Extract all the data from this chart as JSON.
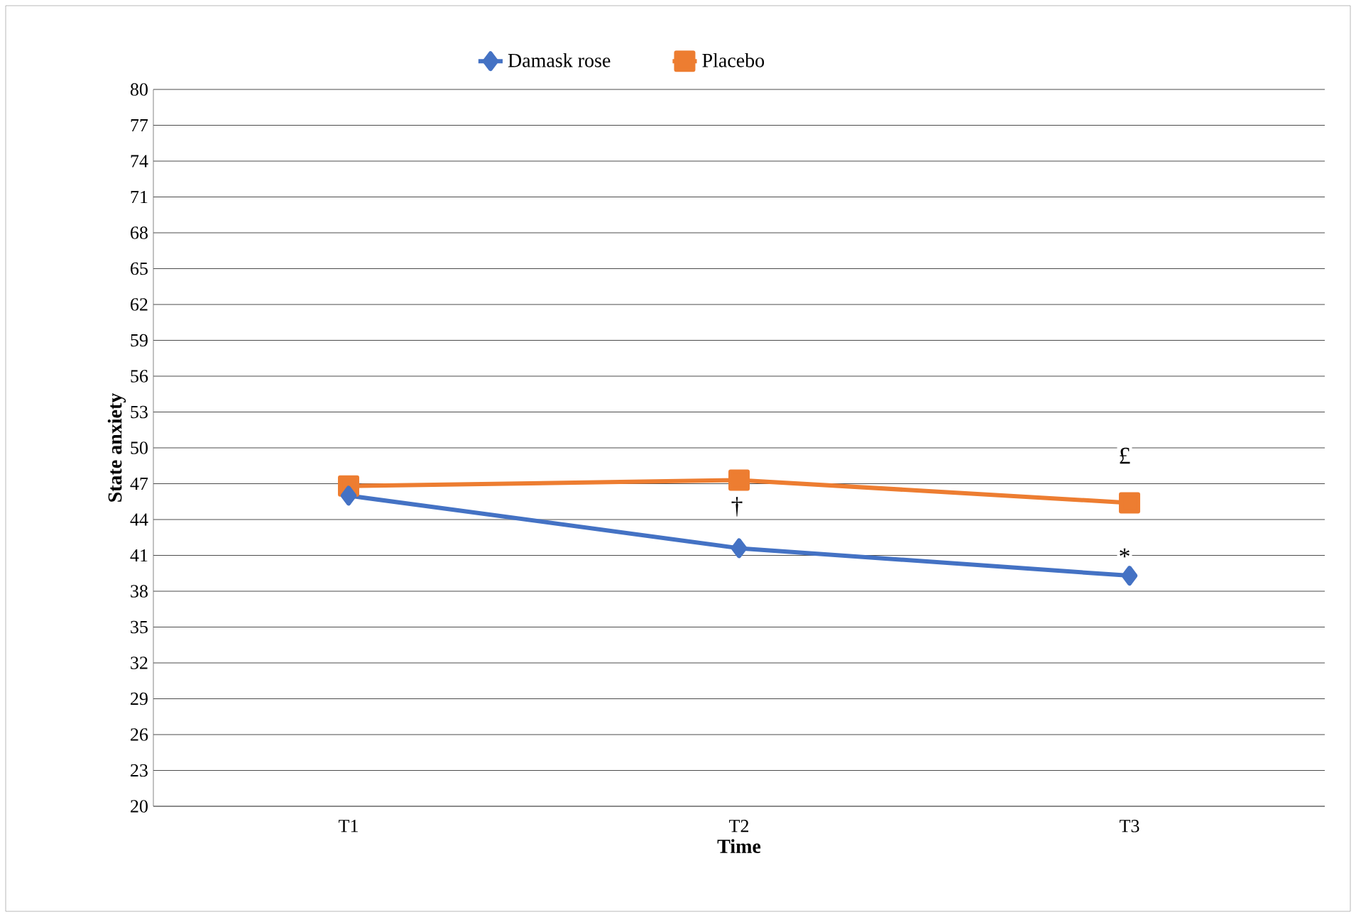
{
  "chart_data": {
    "type": "line",
    "xlabel": "Time",
    "ylabel": "State anxiety",
    "categories": [
      "T1",
      "T2",
      "T3"
    ],
    "series": [
      {
        "name": "Damask rose",
        "color": "#4472c4",
        "marker": "diamond",
        "values": [
          46.0,
          41.6,
          39.3
        ]
      },
      {
        "name": "Placebo",
        "color": "#ed7d31",
        "marker": "square",
        "values": [
          46.8,
          47.3,
          45.4
        ]
      }
    ],
    "ylim": [
      20,
      80
    ],
    "yticks": [
      20,
      23,
      26,
      29,
      32,
      35,
      38,
      41,
      44,
      47,
      50,
      53,
      56,
      59,
      62,
      65,
      68,
      71,
      74,
      77,
      80
    ],
    "grid": "y",
    "legend": "top",
    "annotations": [
      "†",
      "*",
      "£"
    ]
  }
}
